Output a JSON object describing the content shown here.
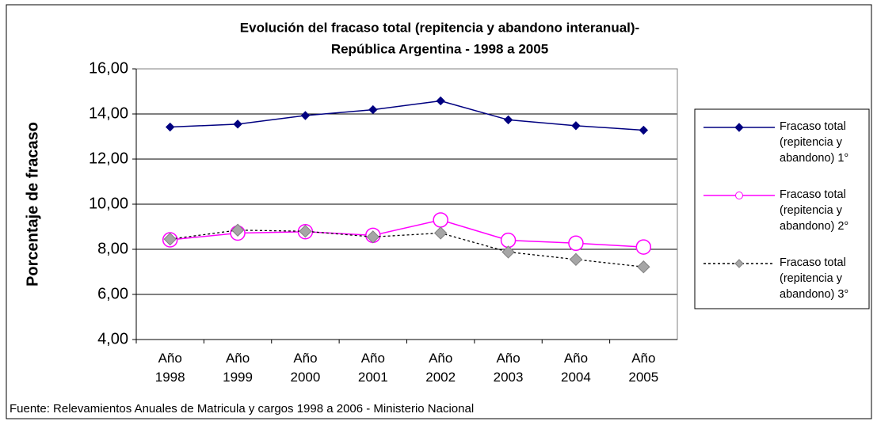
{
  "chart_data": {
    "type": "line",
    "title_lines": [
      "Evolución del fracaso total (repitencia y abandono interanual)-",
      "República Argentina - 1998 a 2005"
    ],
    "y_label": "Porcentaje de fracaso",
    "footnote": "Fuente: Relevamientos Anuales de Matricula y cargos 1998 a 2006 - Ministerio Nacional",
    "categories": [
      "Año 1998",
      "Año 1999",
      "Año 2000",
      "Año 2001",
      "Año 2002",
      "Año 2003",
      "Año 2004",
      "Año 2005"
    ],
    "ylim": [
      4,
      16
    ],
    "yticks": [
      {
        "value": 4,
        "label": "4,00"
      },
      {
        "value": 6,
        "label": "6,00"
      },
      {
        "value": 8,
        "label": "8,00"
      },
      {
        "value": 10,
        "label": "10,00"
      },
      {
        "value": 12,
        "label": "12,00"
      },
      {
        "value": 14,
        "label": "14,00"
      },
      {
        "value": 16,
        "label": "16,00"
      }
    ],
    "grid": true,
    "legend": "right",
    "series": [
      {
        "name": "Fracaso total (repitencia y abandono) 1°",
        "color": "#000080",
        "marker": "diamond",
        "marker_color": "#000080",
        "dashed": false,
        "values": [
          13.42,
          13.55,
          13.93,
          14.19,
          14.58,
          13.74,
          13.48,
          13.28
        ]
      },
      {
        "name": "Fracaso total (repitencia y abandono) 2°",
        "color": "#ff00ff",
        "marker": "circle",
        "marker_color": "#ffffff",
        "dashed": false,
        "values": [
          8.42,
          8.72,
          8.78,
          8.62,
          9.3,
          8.4,
          8.27,
          8.1
        ]
      },
      {
        "name": "Fracaso total (repitencia y abandono) 3°",
        "color": "#000000",
        "marker": "diamond",
        "marker_color": "#a6a6a6",
        "dashed": true,
        "values": [
          8.45,
          8.85,
          8.8,
          8.55,
          8.72,
          7.88,
          7.55,
          7.22
        ]
      }
    ]
  }
}
